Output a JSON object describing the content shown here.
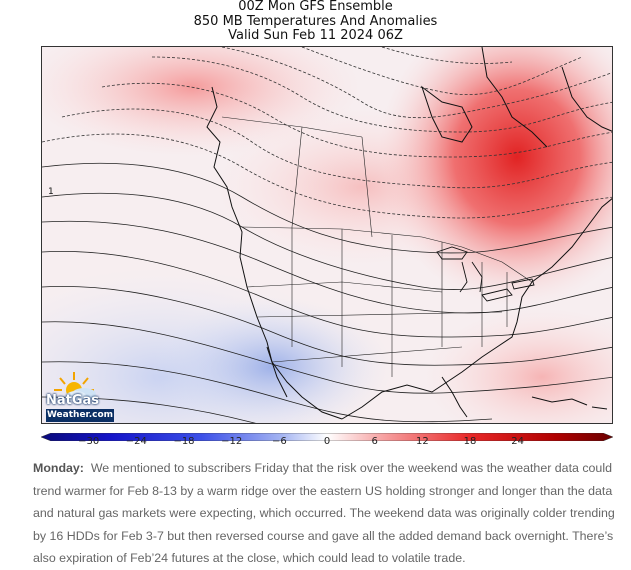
{
  "header": {
    "title_line1": "00Z Mon GFS Ensemble",
    "title_line2": "850 MB Temperatures And Anomalies",
    "title_line3": "Valid Sun Feb 11 2024 06Z"
  },
  "map": {
    "region": "North America",
    "variable": "850 MB temperature anomaly",
    "contour_label_sample": "1",
    "colors": {
      "warm_strong": "#e02020",
      "warm_mid": "#f27a7a",
      "warm_light": "#fbd2d2",
      "neutral": "#f5f5f8",
      "cool_light": "#d6def5",
      "cool_mid": "#9fb2ea",
      "coastline": "#111111",
      "contour": "#222222"
    }
  },
  "logo": {
    "brand": "NatGas",
    "site": "Weather.com"
  },
  "colorbar": {
    "ticks": [
      "−30",
      "−24",
      "−18",
      "−12",
      "−6",
      "0",
      "6",
      "12",
      "18",
      "24"
    ],
    "range": [
      -36,
      36
    ]
  },
  "commentary": {
    "lead": "Monday:",
    "text": "We mentioned to subscribers Friday that the risk over the weekend was the weather data could trend warmer for Feb 8-13 by a warm ridge over the eastern US holding stronger and longer than the data and natural gas markets were expecting, which occurred. The weekend data was originally colder trending by 16 HDDs for Feb 3-7 but then reversed course and gave all the added demand back overnight. There’s also expiration of Feb’24 futures at the close, which could lead to volatile trade."
  }
}
